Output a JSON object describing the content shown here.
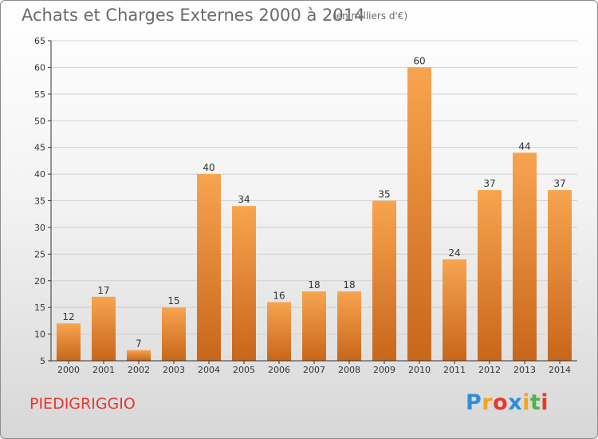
{
  "page": {
    "title": "Achats et Charges Externes 2000 à 2014",
    "unit_note": "(en milliers d'€)",
    "commune": "PIEDIGRIGGIO",
    "logo": {
      "letters": [
        "P",
        "r",
        "o",
        "x",
        "i",
        "t",
        "i"
      ],
      "colors": [
        "#2e8fd6",
        "#f3a51b",
        "#e8362e",
        "#2e8fd6",
        "#f3a51b",
        "#55b045",
        "#e8362e"
      ]
    }
  },
  "chart_data": {
    "type": "bar",
    "categories": [
      "2000",
      "2001",
      "2002",
      "2003",
      "2004",
      "2005",
      "2006",
      "2007",
      "2008",
      "2009",
      "2010",
      "2011",
      "2012",
      "2013",
      "2014"
    ],
    "values": [
      12,
      17,
      7,
      15,
      40,
      34,
      16,
      18,
      18,
      35,
      60,
      24,
      37,
      44,
      37
    ],
    "data_labels": [
      "12",
      "17",
      "7",
      "15",
      "40",
      "34",
      "16",
      "18",
      "18",
      "35",
      "60",
      "24",
      "37",
      "44",
      "37"
    ],
    "ylim": [
      5,
      65
    ],
    "yticks": [
      5,
      10,
      15,
      20,
      25,
      30,
      35,
      40,
      45,
      50,
      55,
      60,
      65
    ],
    "grid": true,
    "colors": {
      "bar_top": "#f7a44f",
      "bar_bottom": "#c8661a",
      "grid": "#cfcfcf",
      "axis": "#333333"
    }
  }
}
